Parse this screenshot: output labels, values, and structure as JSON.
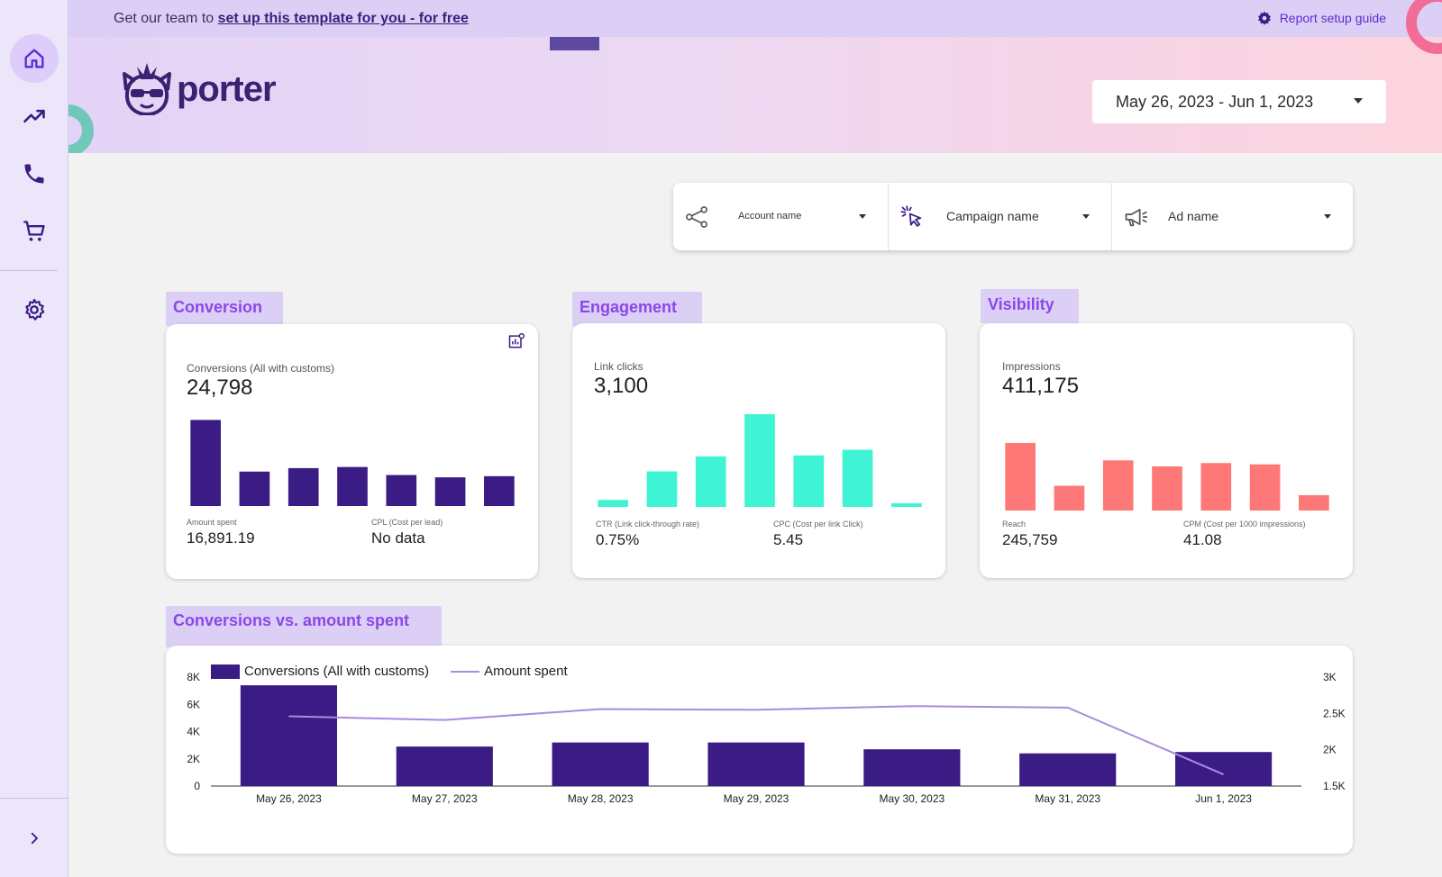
{
  "topbar": {
    "prefix": "Get our team to ",
    "link": "set up this template for you - for free",
    "guide": "Report setup guide"
  },
  "sidebar": {
    "items": [
      {
        "icon": "home-icon"
      },
      {
        "icon": "trending-up-icon"
      },
      {
        "icon": "phone-icon"
      },
      {
        "icon": "cart-icon"
      },
      {
        "icon": "gear-icon"
      }
    ],
    "expand_icon": "chevron-right-icon"
  },
  "brand": {
    "name": "porter"
  },
  "date_range": {
    "value": "May 26, 2023 - Jun 1, 2023"
  },
  "filters": [
    {
      "label": "Account name",
      "icon": "share-icon"
    },
    {
      "label": "Campaign name",
      "icon": "cursor-click-icon"
    },
    {
      "label": "Ad name",
      "icon": "megaphone-icon"
    }
  ],
  "colors": {
    "conversion": "#3a1c84",
    "engagement": "#3ff4d4",
    "visibility": "#fe7878",
    "line": "#a98be0",
    "accent": "#8b47ea"
  },
  "cards": {
    "conversion": {
      "tab": "Conversion",
      "metric_label": "Conversions (All with customs)",
      "metric_value": "24,798",
      "sub1_label": "Amount spent",
      "sub1_value": "16,891.19",
      "sub2_label": "CPL (Cost per lead)",
      "sub2_value": "No data"
    },
    "engagement": {
      "tab": "Engagement",
      "metric_label": "Link clicks",
      "metric_value": "3,100",
      "sub1_label": "CTR (Link click-through rate)",
      "sub1_value": "0.75%",
      "sub2_label": "CPC (Cost per link Click)",
      "sub2_value": "5.45"
    },
    "visibility": {
      "tab": "Visibility",
      "metric_label": "Impressions",
      "metric_value": "411,175",
      "sub1_label": "Reach",
      "sub1_value": "245,759",
      "sub2_label": "CPM (Cost per 1000 impressions)",
      "sub2_value": "41.08"
    },
    "combo": {
      "tab": "Conversions vs. amount spent"
    }
  },
  "chart_data": [
    {
      "type": "bar",
      "series": [
        {
          "values": [
            7500,
            3000,
            3300,
            3400,
            2700,
            2500,
            2600
          ]
        }
      ],
      "ylim": [
        0,
        8000
      ]
    },
    {
      "type": "bar",
      "series": [
        {
          "values": [
            75,
            380,
            540,
            990,
            550,
            610,
            40
          ]
        }
      ],
      "ylim": [
        0,
        1000
      ]
    },
    {
      "type": "bar",
      "series": [
        {
          "values": [
            101000,
            37000,
            75000,
            66000,
            71000,
            69000,
            23000
          ]
        }
      ],
      "ylim": [
        0,
        105000
      ]
    },
    {
      "type": "bar",
      "categories": [
        "May 26, 2023",
        "May 27, 2023",
        "May 28, 2023",
        "May 29, 2023",
        "May 30, 2023",
        "May 31, 2023",
        "Jun 1, 2023"
      ],
      "series": [
        {
          "name": "Conversions (All with customs)",
          "axis": "left",
          "values": [
            7400,
            2900,
            3200,
            3200,
            2700,
            2400,
            2500
          ]
        },
        {
          "name": "Amount spent",
          "axis": "right",
          "type": "line",
          "values": [
            2460,
            2410,
            2560,
            2550,
            2600,
            2580,
            1660
          ]
        }
      ],
      "yticks_left": [
        "0",
        "2K",
        "4K",
        "6K",
        "8K"
      ],
      "yticks_right": [
        "1.5K",
        "2K",
        "2.5K",
        "3K"
      ],
      "ylim": [
        0,
        8000
      ],
      "ylim_right": [
        1500,
        3000
      ],
      "legend": "top-left"
    }
  ]
}
